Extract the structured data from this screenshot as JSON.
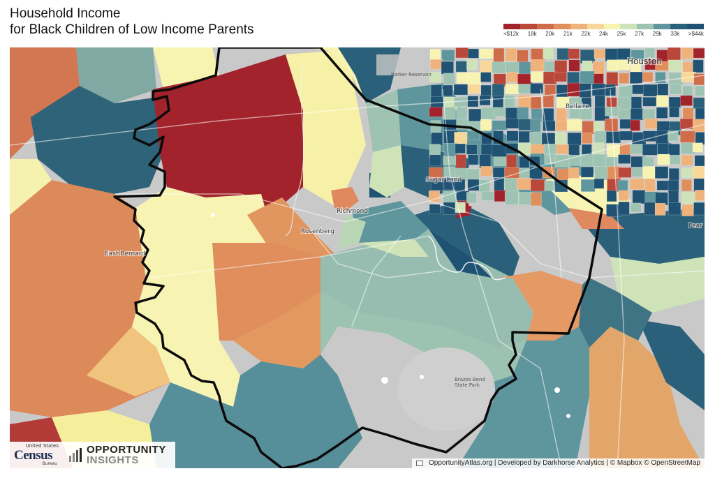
{
  "title": {
    "line1": "Household Income",
    "line2": "for Black Children of Low Income Parents"
  },
  "legend": {
    "labels": [
      "<$12k",
      "18k",
      "20k",
      "21k",
      "22k",
      "24k",
      "25k",
      "27k",
      "29k",
      "33k",
      ">$44k"
    ],
    "colors": [
      "#a3232c",
      "#b9473a",
      "#cf6d4b",
      "#df8e5c",
      "#eeb27a",
      "#f7d89a",
      "#f7f3b3",
      "#cfe3b8",
      "#9fc3b3",
      "#5f969d",
      "#2b607a",
      "#1f5273"
    ]
  },
  "places": {
    "houston": "Houston",
    "bellaire": "Bellaire",
    "sugar_land": "Sugar Land",
    "richmond": "Richmond",
    "rosenberg": "Rosenberg",
    "east_bernard": "East Bernard",
    "pearland": "Pear"
  },
  "poi": {
    "barker": "Barker Reservoir",
    "brazos_1": "Brazos Bend",
    "brazos_2": "State Park"
  },
  "credit": "OpportunityAtlas.org | Developed by Darkhorse Analytics | © Mapbox © OpenStreetMap",
  "logos": {
    "census_top": "United States",
    "census_word": "Census",
    "census_bottom": "Bureau",
    "oi_line1": "OPPORTUNITY",
    "oi_line2": "INSIGHTS"
  }
}
